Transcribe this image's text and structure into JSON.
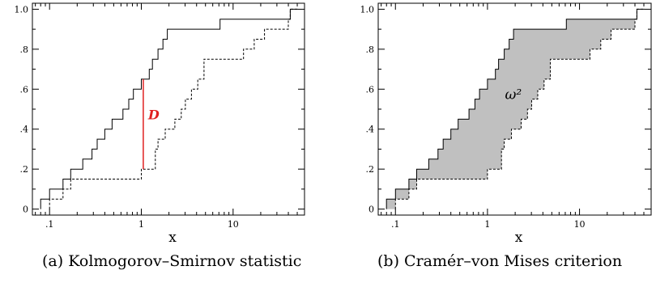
{
  "chart_data": [
    {
      "type": "line",
      "caption": "(a) Kolmogorov–Smirnov statistic",
      "xlabel": "x",
      "x_scale": "log",
      "xlim": [
        0.065,
        60
      ],
      "ylim": [
        -0.03,
        1.03
      ],
      "x_ticks": [
        0.1,
        1,
        10
      ],
      "x_tick_labels": [
        ".1",
        "1",
        "10"
      ],
      "y_ticks": [
        0,
        0.2,
        0.4,
        0.6,
        0.8,
        1.0
      ],
      "y_tick_labels": [
        "0",
        ".2",
        ".4",
        ".6",
        ".8",
        "1.0"
      ],
      "series": [
        {
          "style": "solid",
          "x": [
            0.08,
            0.1,
            0.14,
            0.17,
            0.23,
            0.29,
            0.33,
            0.4,
            0.48,
            0.63,
            0.73,
            0.82,
            1.0,
            1.22,
            1.32,
            1.52,
            1.72,
            1.92,
            2.52,
            3.2,
            4.8,
            7.2,
            42
          ],
          "y": [
            0.05,
            0.1,
            0.15,
            0.2,
            0.25,
            0.3,
            0.35,
            0.4,
            0.45,
            0.5,
            0.55,
            0.6,
            0.65,
            0.7,
            0.75,
            0.8,
            0.85,
            0.9,
            0.9,
            0.9,
            0.9,
            0.95,
            1.0
          ]
        },
        {
          "style": "dashed",
          "x": [
            0.1,
            0.14,
            0.17,
            0.48,
            1.0,
            1.42,
            1.52,
            1.82,
            2.32,
            2.72,
            3.02,
            3.52,
            4.12,
            4.82,
            13,
            17,
            22,
            33,
            40,
            42
          ],
          "y": [
            0.05,
            0.1,
            0.15,
            0.15,
            0.2,
            0.3,
            0.35,
            0.4,
            0.45,
            0.5,
            0.55,
            0.6,
            0.65,
            0.75,
            0.8,
            0.85,
            0.9,
            0.9,
            0.95,
            1.0
          ]
        }
      ],
      "annotation": {
        "label": "D",
        "x": 1.05,
        "y_low": 0.2,
        "y_high": 0.65,
        "color": "#e02020"
      }
    },
    {
      "type": "area",
      "caption": "(b) Cramér–von Mises criterion",
      "xlabel": "x",
      "x_scale": "log",
      "xlim": [
        0.065,
        60
      ],
      "ylim": [
        -0.03,
        1.03
      ],
      "x_ticks": [
        0.1,
        1,
        10
      ],
      "x_tick_labels": [
        ".1",
        "1",
        "10"
      ],
      "y_ticks": [
        0,
        0.2,
        0.4,
        0.6,
        0.8,
        1.0
      ],
      "y_tick_labels": [
        "0",
        ".2",
        ".4",
        ".6",
        ".8",
        "1.0"
      ],
      "fill_color": "#c0c0c0",
      "annotation": {
        "label": "ω²",
        "x": 1.55,
        "y": 0.55
      }
    }
  ]
}
